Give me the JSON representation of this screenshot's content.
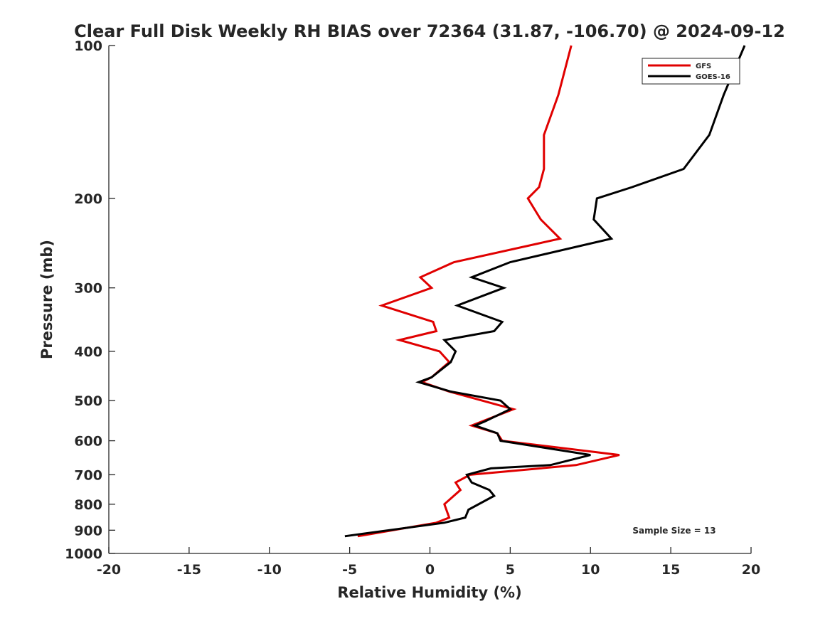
{
  "chart_data": {
    "type": "line",
    "title": "Clear Full Disk Weekly RH BIAS over 72364 (31.87, -106.70) @ 2024-09-12",
    "xlabel": "Relative Humidity (%)",
    "ylabel": "Pressure (mb)",
    "xlim": [
      -20,
      20
    ],
    "ylim": [
      1000,
      100
    ],
    "y_scale": "log",
    "x_ticks": [
      -20,
      -15,
      -10,
      -5,
      0,
      5,
      10,
      15,
      20
    ],
    "y_ticks": [
      100,
      200,
      300,
      400,
      500,
      600,
      700,
      800,
      900,
      1000
    ],
    "grid": false,
    "legend_position": "top-right",
    "annotation": "Sample Size = 13",
    "series": [
      {
        "name": "GFS",
        "color": "#e00000",
        "points": [
          [
            8.8,
            100
          ],
          [
            8.0,
            125
          ],
          [
            7.1,
            150
          ],
          [
            7.1,
            175
          ],
          [
            6.8,
            190
          ],
          [
            6.1,
            200
          ],
          [
            6.9,
            220
          ],
          [
            8.1,
            240
          ],
          [
            1.5,
            267
          ],
          [
            -0.6,
            286
          ],
          [
            0.1,
            300
          ],
          [
            -3.0,
            325
          ],
          [
            0.2,
            350
          ],
          [
            0.4,
            365
          ],
          [
            -1.9,
            380
          ],
          [
            0.6,
            400
          ],
          [
            1.2,
            420
          ],
          [
            0.1,
            450
          ],
          [
            -0.5,
            460
          ],
          [
            1.2,
            480
          ],
          [
            5.2,
            520
          ],
          [
            2.6,
            560
          ],
          [
            4.2,
            580
          ],
          [
            4.5,
            600
          ],
          [
            11.8,
            640
          ],
          [
            9.1,
            670
          ],
          [
            2.5,
            700
          ],
          [
            1.6,
            725
          ],
          [
            1.9,
            750
          ],
          [
            0.9,
            800
          ],
          [
            1.2,
            850
          ],
          [
            0.4,
            870
          ],
          [
            -4.5,
            925
          ]
        ]
      },
      {
        "name": "GOES-16",
        "color": "#000000",
        "points": [
          [
            19.6,
            100
          ],
          [
            18.3,
            125
          ],
          [
            17.4,
            150
          ],
          [
            15.8,
            175
          ],
          [
            12.6,
            190
          ],
          [
            10.4,
            200
          ],
          [
            10.2,
            220
          ],
          [
            11.3,
            240
          ],
          [
            5.0,
            267
          ],
          [
            2.6,
            286
          ],
          [
            4.6,
            300
          ],
          [
            1.7,
            325
          ],
          [
            4.5,
            350
          ],
          [
            4.0,
            365
          ],
          [
            0.9,
            380
          ],
          [
            1.6,
            400
          ],
          [
            1.3,
            420
          ],
          [
            0.1,
            450
          ],
          [
            -0.7,
            460
          ],
          [
            1.3,
            480
          ],
          [
            4.4,
            500
          ],
          [
            5.0,
            520
          ],
          [
            3.4,
            550
          ],
          [
            2.8,
            560
          ],
          [
            4.2,
            580
          ],
          [
            4.4,
            600
          ],
          [
            10.0,
            640
          ],
          [
            7.5,
            670
          ],
          [
            3.8,
            680
          ],
          [
            2.3,
            700
          ],
          [
            2.6,
            725
          ],
          [
            3.7,
            750
          ],
          [
            4.0,
            770
          ],
          [
            2.4,
            820
          ],
          [
            2.2,
            850
          ],
          [
            0.9,
            870
          ],
          [
            -5.3,
            925
          ]
        ]
      }
    ]
  }
}
